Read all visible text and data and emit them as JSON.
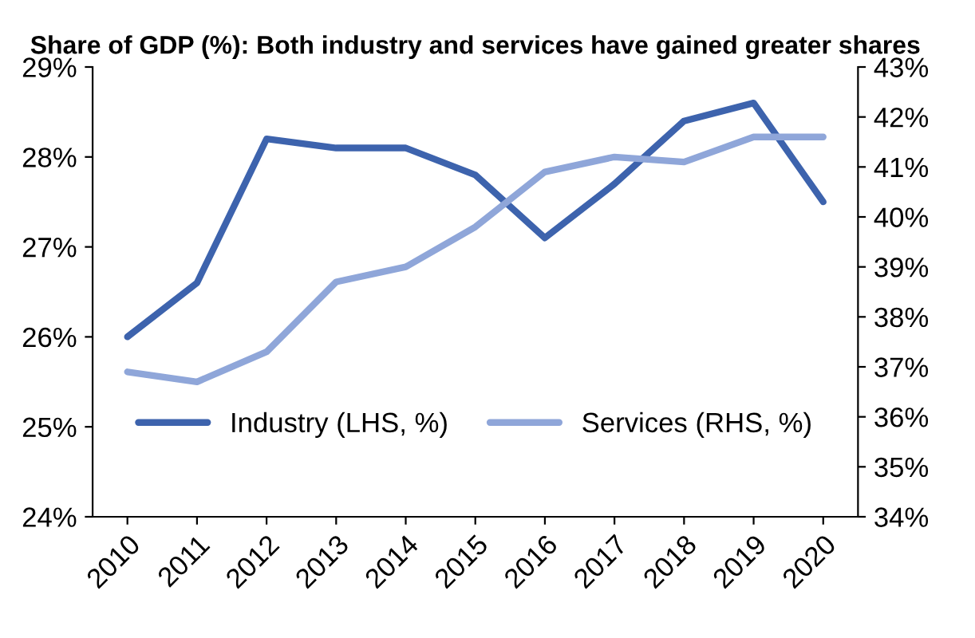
{
  "chart_data": {
    "type": "line",
    "title": "Share of GDP (%): Both industry and services have gained greater shares",
    "categories": [
      "2010",
      "2011",
      "2012",
      "2013",
      "2014",
      "2015",
      "2016",
      "2017",
      "2018",
      "2019",
      "2020"
    ],
    "series": [
      {
        "name": "Industry (LHS, %)",
        "color": "#3d63ad",
        "values": [
          26.0,
          26.6,
          28.2,
          28.1,
          28.1,
          27.8,
          27.1,
          27.7,
          28.4,
          28.6,
          27.5
        ]
      },
      {
        "name": "Services (RHS, %)",
        "color": "#8fa6d9",
        "axis": "y2",
        "values": [
          36.9,
          36.7,
          37.3,
          38.7,
          39.0,
          39.8,
          40.9,
          41.2,
          41.1,
          41.6,
          41.6
        ]
      }
    ],
    "ylim": [
      24,
      29
    ],
    "yticks": [
      {
        "value": 24,
        "label": "24%"
      },
      {
        "value": 25,
        "label": "25%"
      },
      {
        "value": 26,
        "label": "26%"
      },
      {
        "value": 27,
        "label": "27%"
      },
      {
        "value": 28,
        "label": "28%"
      },
      {
        "value": 29,
        "label": "29%"
      }
    ],
    "y2lim": [
      34,
      43
    ],
    "y2ticks": [
      {
        "value": 34,
        "label": "34%"
      },
      {
        "value": 35,
        "label": "35%"
      },
      {
        "value": 36,
        "label": "36%"
      },
      {
        "value": 37,
        "label": "37%"
      },
      {
        "value": 38,
        "label": "38%"
      },
      {
        "value": 39,
        "label": "39%"
      },
      {
        "value": 40,
        "label": "40%"
      },
      {
        "value": 41,
        "label": "41%"
      },
      {
        "value": 42,
        "label": "42%"
      },
      {
        "value": 43,
        "label": "43%"
      }
    ],
    "legend": "bottom",
    "grid": false
  }
}
